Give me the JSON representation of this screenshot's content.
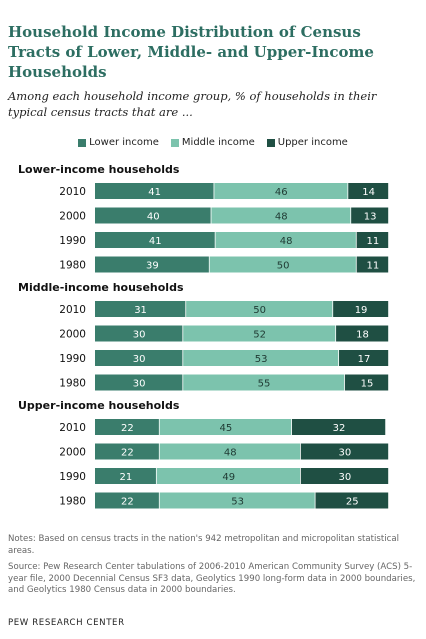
{
  "title": "Household Income Distribution of Census Tracts of Lower, Middle- and Upper-Income Households",
  "subtitle": "Among each household income group, % of households in their typical census tracts that are ...",
  "legend": [
    {
      "label": "Lower income",
      "color": "#3a7d6c"
    },
    {
      "label": "Middle income",
      "color": "#7cc3ad"
    },
    {
      "label": "Upper income",
      "color": "#1f4f43"
    }
  ],
  "chart_data": {
    "type": "bar",
    "orientation": "horizontal",
    "stacked": true,
    "xlim": [
      0,
      100
    ],
    "series_names": [
      "Lower income",
      "Middle income",
      "Upper income"
    ],
    "groups": [
      {
        "name": "Lower-income households",
        "rows": [
          {
            "year": "2010",
            "values": [
              41,
              46,
              14
            ]
          },
          {
            "year": "2000",
            "values": [
              40,
              48,
              13
            ]
          },
          {
            "year": "1990",
            "values": [
              41,
              48,
              11
            ]
          },
          {
            "year": "1980",
            "values": [
              39,
              50,
              11
            ]
          }
        ]
      },
      {
        "name": "Middle-income households",
        "rows": [
          {
            "year": "2010",
            "values": [
              31,
              50,
              19
            ]
          },
          {
            "year": "2000",
            "values": [
              30,
              52,
              18
            ]
          },
          {
            "year": "1990",
            "values": [
              30,
              53,
              17
            ]
          },
          {
            "year": "1980",
            "values": [
              30,
              55,
              15
            ]
          }
        ]
      },
      {
        "name": "Upper-income households",
        "rows": [
          {
            "year": "2010",
            "values": [
              22,
              45,
              32
            ]
          },
          {
            "year": "2000",
            "values": [
              22,
              48,
              30
            ]
          },
          {
            "year": "1990",
            "values": [
              21,
              49,
              30
            ]
          },
          {
            "year": "1980",
            "values": [
              22,
              53,
              25
            ]
          }
        ]
      }
    ]
  },
  "notes": [
    "Notes: Based on census tracts in the nation's 942 metropolitan and micropolitan statistical areas.",
    "Source: Pew Research Center tabulations of 2006-2010 American Community Survey (ACS) 5-year file, 2000 Decennial Census SF3 data, Geolytics 1990 long-form data in 2000 boundaries, and Geolytics 1980 Census data in 2000 boundaries."
  ],
  "brand": "PEW RESEARCH CENTER"
}
